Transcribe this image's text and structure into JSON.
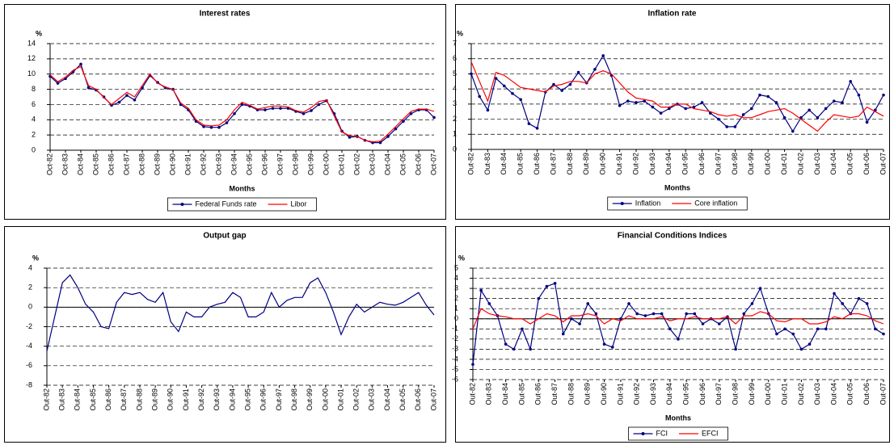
{
  "chart_data": [
    {
      "type": "line",
      "title": "Interest rates",
      "y_label": "%",
      "x_label": "Months",
      "categories": [
        "Oct-82",
        null,
        "Oct-83",
        null,
        "Oct-84",
        null,
        "Oct-85",
        null,
        "Oct-86",
        null,
        "Oct-87",
        null,
        "Oct-88",
        null,
        "Oct-89",
        null,
        "Oct-90",
        null,
        "Oct-91",
        null,
        "Oct-92",
        null,
        "Oct-93",
        null,
        "Oct-94",
        null,
        "Oct-95",
        null,
        "Oct-96",
        null,
        "Oct-97",
        null,
        "Oct-98",
        null,
        "Oct-99",
        null,
        "Oct-00",
        null,
        "Oct-01",
        null,
        "Oct-02",
        null,
        "Oct-03",
        null,
        "Oct-04",
        null,
        "Oct-05",
        null,
        "Oct-06",
        null,
        "Oct-07"
      ],
      "series": [
        {
          "name": "Federal Funds rate",
          "color": "#000080",
          "marker": true,
          "values": [
            9.7,
            8.8,
            9.4,
            10.3,
            11.3,
            8.2,
            7.9,
            7.0,
            5.9,
            6.3,
            7.2,
            6.6,
            8.2,
            9.8,
            8.9,
            8.2,
            8.0,
            6.0,
            5.3,
            3.8,
            3.1,
            3.0,
            3.0,
            3.6,
            4.8,
            6.0,
            5.8,
            5.3,
            5.3,
            5.5,
            5.5,
            5.5,
            5.1,
            4.8,
            5.2,
            6.0,
            6.5,
            4.8,
            2.5,
            1.7,
            1.8,
            1.3,
            1.0,
            1.0,
            1.8,
            2.8,
            3.8,
            4.8,
            5.3,
            5.3,
            4.3
          ]
        },
        {
          "name": "Libor",
          "color": "#ff0000",
          "marker": false,
          "values": [
            9.9,
            9.0,
            9.6,
            10.5,
            11.0,
            8.5,
            8.0,
            6.9,
            6.0,
            6.8,
            7.6,
            7.0,
            8.5,
            10.0,
            8.8,
            8.3,
            8.0,
            6.2,
            5.5,
            4.0,
            3.3,
            3.2,
            3.3,
            4.0,
            5.3,
            6.3,
            5.9,
            5.4,
            5.6,
            5.8,
            5.8,
            5.7,
            5.2,
            5.0,
            5.6,
            6.4,
            6.6,
            4.5,
            2.4,
            1.9,
            1.8,
            1.3,
            1.1,
            1.2,
            2.1,
            3.1,
            4.1,
            5.1,
            5.4,
            5.4,
            5.1
          ]
        }
      ],
      "ylim": [
        0,
        14
      ],
      "yticks": [
        0,
        2,
        4,
        6,
        8,
        10,
        12,
        14
      ],
      "grid": true,
      "legend": "bottom"
    },
    {
      "type": "line",
      "title": "Inflation rate",
      "y_label": "%",
      "x_label": "Months",
      "categories": [
        "Out-82",
        null,
        "Out-83",
        null,
        "Out-84",
        null,
        "Out-85",
        null,
        "Out-86",
        null,
        "Out-87",
        null,
        "Out-88",
        null,
        "Out-89",
        null,
        "Out-90",
        null,
        "Out-91",
        null,
        "Out-92",
        null,
        "Out-93",
        null,
        "Out-94",
        null,
        "Out-95",
        null,
        "Out-96",
        null,
        "Out-97",
        null,
        "Out-98",
        null,
        "Out-99",
        null,
        "Out-00",
        null,
        "Out-01",
        null,
        "Out-02",
        null,
        "Out-03",
        null,
        "Out-04",
        null,
        "Out-05",
        null,
        "Out-06",
        null,
        "Out-07"
      ],
      "series": [
        {
          "name": "Inflation",
          "color": "#000080",
          "marker": true,
          "values": [
            5.0,
            3.5,
            2.6,
            4.7,
            4.2,
            3.7,
            3.3,
            1.7,
            1.4,
            3.8,
            4.3,
            3.9,
            4.3,
            5.1,
            4.4,
            5.3,
            6.2,
            4.9,
            2.9,
            3.2,
            3.1,
            3.2,
            2.8,
            2.4,
            2.7,
            3.0,
            2.7,
            2.8,
            3.1,
            2.4,
            2.0,
            1.5,
            1.5,
            2.3,
            2.7,
            3.6,
            3.5,
            3.1,
            2.1,
            1.2,
            2.1,
            2.6,
            2.1,
            2.7,
            3.2,
            3.1,
            4.5,
            3.6,
            1.8,
            2.6,
            3.6
          ]
        },
        {
          "name": "Core inflation",
          "color": "#ff0000",
          "marker": false,
          "values": [
            5.8,
            4.5,
            3.2,
            5.1,
            4.9,
            4.5,
            4.1,
            4.0,
            3.9,
            3.8,
            4.2,
            4.3,
            4.5,
            4.5,
            4.4,
            5.0,
            5.2,
            5.0,
            4.4,
            3.8,
            3.4,
            3.3,
            3.2,
            2.8,
            2.8,
            3.0,
            3.0,
            2.7,
            2.6,
            2.5,
            2.3,
            2.2,
            2.3,
            2.1,
            2.1,
            2.3,
            2.5,
            2.6,
            2.7,
            2.4,
            2.0,
            1.6,
            1.2,
            1.8,
            2.3,
            2.2,
            2.1,
            2.2,
            2.8,
            2.5,
            2.2
          ]
        }
      ],
      "ylim": [
        0,
        7
      ],
      "yticks": [
        0,
        1,
        2,
        3,
        4,
        5,
        6,
        7
      ],
      "grid": true,
      "legend": "bottom"
    },
    {
      "type": "line",
      "title": "Output gap",
      "y_label": "%",
      "categories": [
        "Out-82",
        null,
        "Out-83",
        null,
        "Out-84",
        null,
        "Out-85",
        null,
        "Out-86",
        null,
        "Out-87",
        null,
        "Out-88",
        null,
        "Out-89",
        null,
        "Out-90",
        null,
        "Out-91",
        null,
        "Out-92",
        null,
        "Out-93",
        null,
        "Out-94",
        null,
        "Out-95",
        null,
        "Out-96",
        null,
        "Out-97",
        null,
        "Out-98",
        null,
        "Out-99",
        null,
        "Out-00",
        null,
        "Out-01",
        null,
        "Out-02",
        null,
        "Out-03",
        null,
        "Out-04",
        null,
        "Out-05",
        null,
        "Out-06",
        null,
        "Out-07"
      ],
      "series": [
        {
          "color": "#000080",
          "marker": false,
          "values": [
            -4.5,
            -1.0,
            2.5,
            3.3,
            2.0,
            0.3,
            -0.5,
            -2.0,
            -2.2,
            0.5,
            1.5,
            1.3,
            1.5,
            0.8,
            0.5,
            1.5,
            -1.5,
            -2.5,
            -0.5,
            -1.0,
            -1.0,
            0.0,
            0.3,
            0.5,
            1.5,
            1.0,
            -1.0,
            -1.0,
            -0.5,
            1.5,
            0.0,
            0.7,
            1.0,
            1.0,
            2.5,
            3.0,
            1.5,
            -0.5,
            -2.8,
            -1.0,
            0.3,
            -0.5,
            0.0,
            0.5,
            0.3,
            0.2,
            0.5,
            1.0,
            1.5,
            0.2,
            -0.8
          ]
        }
      ],
      "ylim": [
        -8,
        4
      ],
      "yticks": [
        -8,
        -6,
        -4,
        -2,
        0,
        2,
        4
      ],
      "grid": true
    },
    {
      "type": "line",
      "title": "Financial Conditions Indices",
      "y_label": "%",
      "x_label": "Months",
      "categories": [
        "Out-82",
        null,
        "Out-83",
        null,
        "Out-84",
        null,
        "Out-85",
        null,
        "Out-86",
        null,
        "Out-87",
        null,
        "Out-88",
        null,
        "Out-89",
        null,
        "Out-90",
        null,
        "Out-91",
        null,
        "Out-92",
        null,
        "Out-93",
        null,
        "Out-94",
        null,
        "Out-95",
        null,
        "Out-96",
        null,
        "Out-97",
        null,
        "Out-98",
        null,
        "Out-99",
        null,
        "Out-00",
        null,
        "Out-01",
        null,
        "Out-02",
        null,
        "Out-03",
        null,
        "Out-04",
        null,
        "Out-05",
        null,
        "Out-06",
        null,
        "Out-07"
      ],
      "series": [
        {
          "name": "FCI",
          "color": "#000080",
          "marker": true,
          "values": [
            -4.5,
            2.8,
            1.5,
            0.3,
            -2.5,
            -3.0,
            -1.0,
            -3.0,
            2.0,
            3.2,
            3.5,
            -1.5,
            0.0,
            -0.5,
            1.5,
            0.5,
            -2.5,
            -2.8,
            0.0,
            1.5,
            0.5,
            0.3,
            0.5,
            0.5,
            -1.0,
            -2.0,
            0.5,
            0.5,
            -0.5,
            0.0,
            -0.5,
            0.2,
            -3.0,
            0.5,
            1.5,
            3.0,
            0.5,
            -1.5,
            -1.0,
            -1.5,
            -3.0,
            -2.5,
            -1.0,
            -1.0,
            2.5,
            1.5,
            0.5,
            2.0,
            1.5,
            -1.0,
            -1.5
          ]
        },
        {
          "name": "EFCI",
          "color": "#ff0000",
          "marker": false,
          "values": [
            -1.0,
            1.0,
            0.5,
            0.3,
            0.2,
            0.0,
            0.0,
            -0.5,
            0.0,
            0.5,
            0.3,
            -0.3,
            0.3,
            0.3,
            0.5,
            0.3,
            -0.5,
            0.0,
            -0.2,
            0.3,
            0.0,
            0.0,
            0.0,
            0.2,
            -0.2,
            0.0,
            0.0,
            0.2,
            0.0,
            0.0,
            0.0,
            0.2,
            -0.5,
            0.3,
            0.3,
            0.7,
            0.5,
            -0.2,
            -0.3,
            0.0,
            0.0,
            -0.5,
            -0.5,
            -0.3,
            0.2,
            0.0,
            0.5,
            0.5,
            0.3,
            -0.2,
            -0.5
          ]
        }
      ],
      "ylim": [
        -6,
        5
      ],
      "yticks": [
        -6,
        -5,
        -4,
        -3,
        -2,
        -1,
        0,
        1,
        2,
        3,
        4,
        5
      ],
      "grid": true,
      "legend": "bottom"
    }
  ]
}
